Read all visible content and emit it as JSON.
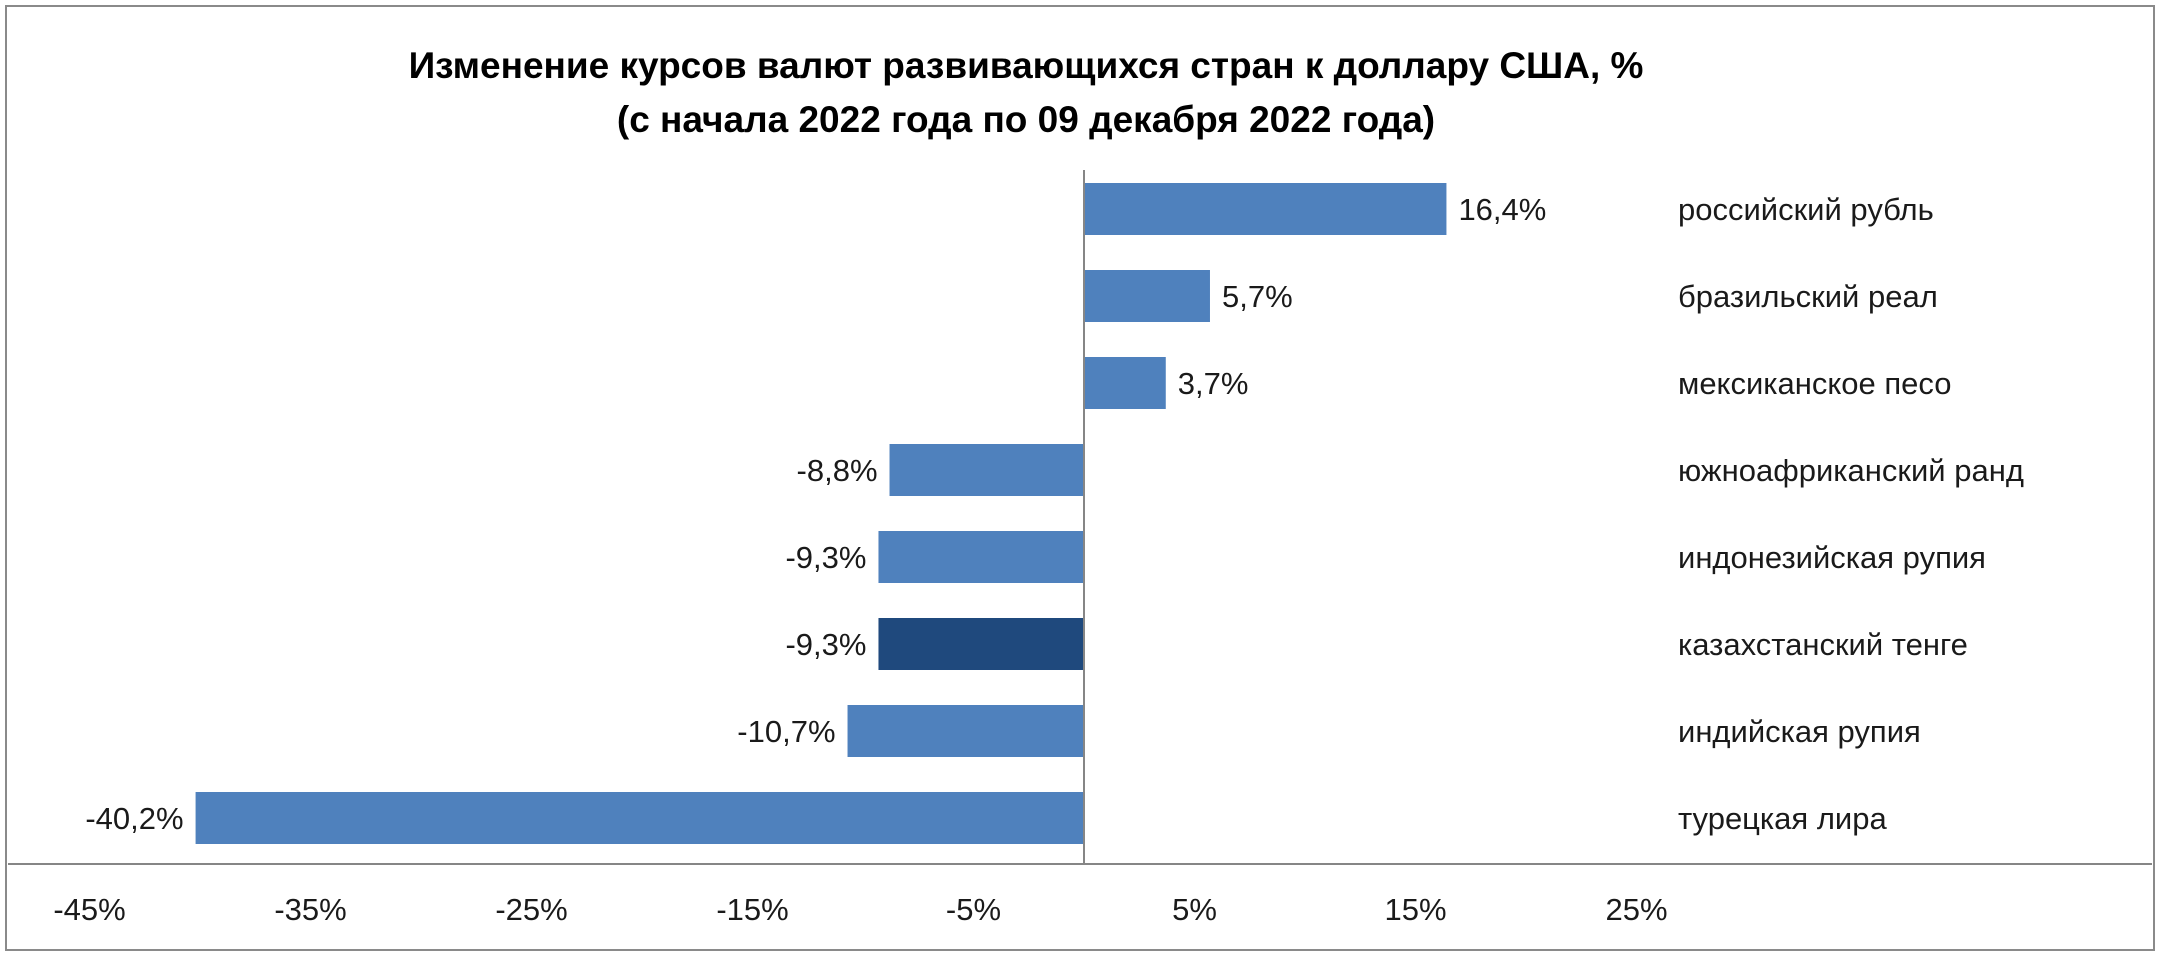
{
  "chart_data": {
    "type": "bar",
    "orientation": "horizontal",
    "title": "Изменение курсов валют развивающихся стран к доллару США, %",
    "subtitle": "(с начала 2022 года по 09 декабря 2022 года)",
    "categories": [
      "российский рубль",
      "бразильский реал",
      "мексиканское песо",
      "южноафриканский ранд",
      "индонезийская рупия",
      "казахстанский тенге",
      "индийская рупия",
      "турецкая лира"
    ],
    "values": [
      16.4,
      5.7,
      3.7,
      -8.8,
      -9.3,
      -9.3,
      -10.7,
      -40.2
    ],
    "value_labels": [
      "16,4%",
      "5,7%",
      "3,7%",
      "-8,8%",
      "-9,3%",
      "-9,3%",
      "-10,7%",
      "-40,2%"
    ],
    "highlight_index": 5,
    "xlim": [
      -45,
      25
    ],
    "xticks": [
      -45,
      -35,
      -25,
      -15,
      -5,
      5,
      15,
      25
    ],
    "xtick_labels": [
      "-45%",
      "-35%",
      "-25%",
      "-15%",
      "-5%",
      "5%",
      "15%",
      "25%"
    ],
    "xlabel": "",
    "ylabel": "",
    "grid": false,
    "colors": {
      "bar": "#4f81bd",
      "highlight": "#1f497d",
      "axis": "#868686"
    }
  }
}
